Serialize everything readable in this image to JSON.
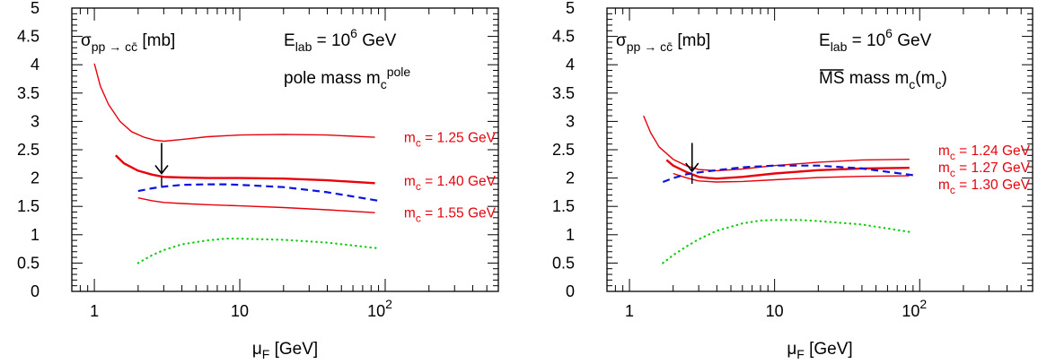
{
  "chart_data": [
    {
      "type": "line",
      "panel": "left",
      "xscale": "log",
      "xlim": [
        0.7,
        600
      ],
      "ylim": [
        0,
        5
      ],
      "ytick_labels": [
        "0",
        "0.5",
        "1",
        "1.5",
        "2",
        "2.5",
        "3",
        "3.5",
        "4",
        "4.5",
        "5"
      ],
      "xtick_labels": [
        {
          "base": "1",
          "sup": ""
        },
        {
          "base": "10",
          "sup": ""
        },
        {
          "base": "10",
          "sup": "2"
        }
      ],
      "xlabel": {
        "sym": "μ",
        "sub": "F",
        "rest": " [GeV]"
      },
      "ylabel": {
        "sym": "σ",
        "sub": "pp → cc̄",
        "rest": " [mb]"
      },
      "annotations": {
        "elab": {
          "base": "E",
          "sub": "lab",
          "mid": " = 10",
          "sup": "6",
          "rest": " GeV"
        },
        "scheme": {
          "base": "pole mass m",
          "sub": "c",
          "sup": "pole",
          "rest": ""
        }
      },
      "arrow": {
        "x": 2.9,
        "y_from": 2.62,
        "y_to": 2.08
      },
      "series": [
        {
          "label": {
            "pre": "m",
            "sub": "c",
            "post": " = 1.25 GeV"
          },
          "label_at_y": 2.73,
          "color": "#e8000b",
          "style": "solid",
          "width": 1.4,
          "x": [
            1.0,
            1.1,
            1.25,
            1.5,
            1.8,
            2.2,
            2.6,
            3.0,
            4,
            6,
            10,
            20,
            40,
            85
          ],
          "y": [
            4.02,
            3.62,
            3.3,
            3.0,
            2.82,
            2.72,
            2.67,
            2.65,
            2.68,
            2.73,
            2.76,
            2.77,
            2.76,
            2.72
          ]
        },
        {
          "label": {
            "pre": "m",
            "sub": "c",
            "post": " = 1.40 GeV"
          },
          "label_at_y": 1.96,
          "color": "#e8000b",
          "style": "solid",
          "width": 2.4,
          "x": [
            1.4,
            1.6,
            2.0,
            2.5,
            3.0,
            4,
            6,
            10,
            20,
            40,
            85
          ],
          "y": [
            2.4,
            2.26,
            2.13,
            2.06,
            2.02,
            2.01,
            2.0,
            2.0,
            1.99,
            1.96,
            1.91
          ]
        },
        {
          "label": {
            "pre": "m",
            "sub": "c",
            "post": " = 1.55 GeV"
          },
          "label_at_y": 1.4,
          "color": "#e8000b",
          "style": "solid",
          "width": 1.4,
          "x": [
            2.0,
            2.5,
            3.0,
            4,
            6,
            10,
            20,
            40,
            85
          ],
          "y": [
            1.65,
            1.6,
            1.57,
            1.55,
            1.53,
            1.51,
            1.48,
            1.44,
            1.39
          ]
        },
        {
          "label": null,
          "color": "#0a14e0",
          "style": "dashed",
          "width": 2.2,
          "x": [
            2.0,
            2.5,
            3.0,
            4,
            6,
            8,
            10,
            20,
            40,
            90
          ],
          "y": [
            1.77,
            1.82,
            1.85,
            1.88,
            1.89,
            1.89,
            1.88,
            1.84,
            1.75,
            1.6
          ]
        },
        {
          "label": null,
          "color": "#11cc11",
          "style": "dotted",
          "width": 2.2,
          "x": [
            2.0,
            2.5,
            3.0,
            4,
            6,
            8,
            10,
            20,
            40,
            90
          ],
          "y": [
            0.5,
            0.64,
            0.73,
            0.83,
            0.9,
            0.93,
            0.93,
            0.91,
            0.86,
            0.76
          ]
        }
      ]
    },
    {
      "type": "line",
      "panel": "right",
      "xscale": "log",
      "xlim": [
        0.7,
        600
      ],
      "ylim": [
        0,
        5
      ],
      "ytick_labels": [
        "0",
        "0.5",
        "1",
        "1.5",
        "2",
        "2.5",
        "3",
        "3.5",
        "4",
        "4.5",
        "5"
      ],
      "xtick_labels": [
        {
          "base": "1",
          "sup": ""
        },
        {
          "base": "10",
          "sup": ""
        },
        {
          "base": "10",
          "sup": "2"
        }
      ],
      "xlabel": {
        "sym": "μ",
        "sub": "F",
        "rest": " [GeV]"
      },
      "ylabel": {
        "sym": "σ",
        "sub": "pp → cc̄",
        "rest": " [mb]"
      },
      "annotations": {
        "elab": {
          "base": "E",
          "sub": "lab",
          "mid": " = 10",
          "sup": "6",
          "rest": " GeV"
        },
        "scheme": {
          "overline": "MS",
          "base": " mass m",
          "sub": "c",
          "rest": "(m",
          "sub2": "c",
          "end": ")"
        }
      },
      "arrow": {
        "x": 2.7,
        "y_from": 2.62,
        "y_to": 2.12
      },
      "series": [
        {
          "label": {
            "pre": "m",
            "sub": "c",
            "post": " = 1.24 GeV"
          },
          "label_at_y": 2.5,
          "color": "#e8000b",
          "style": "solid",
          "width": 1.4,
          "x": [
            1.25,
            1.4,
            1.6,
            2.0,
            2.5,
            3.0,
            4,
            6,
            10,
            20,
            40,
            85
          ],
          "y": [
            3.1,
            2.8,
            2.55,
            2.33,
            2.21,
            2.15,
            2.13,
            2.16,
            2.22,
            2.28,
            2.32,
            2.33
          ]
        },
        {
          "label": {
            "pre": "m",
            "sub": "c",
            "post": " = 1.27 GeV"
          },
          "label_at_y": 2.2,
          "color": "#e8000b",
          "style": "solid",
          "width": 2.4,
          "x": [
            1.8,
            2.0,
            2.5,
            3.0,
            3.5,
            4,
            6,
            10,
            20,
            40,
            85
          ],
          "y": [
            2.32,
            2.22,
            2.1,
            2.02,
            2.0,
            1.99,
            2.02,
            2.08,
            2.14,
            2.17,
            2.18
          ]
        },
        {
          "label": {
            "pre": "m",
            "sub": "c",
            "post": " = 1.30 GeV"
          },
          "label_at_y": 1.9,
          "color": "#e8000b",
          "style": "solid",
          "width": 1.4,
          "x": [
            2.0,
            2.5,
            3.0,
            4,
            6,
            10,
            20,
            40,
            85
          ],
          "y": [
            2.08,
            2.0,
            1.95,
            1.93,
            1.94,
            1.97,
            2.01,
            2.03,
            2.04
          ]
        },
        {
          "label": null,
          "color": "#0a14e0",
          "style": "dashed",
          "width": 2.2,
          "x": [
            1.7,
            2.0,
            2.5,
            3.0,
            4,
            6,
            10,
            20,
            40,
            90
          ],
          "y": [
            1.93,
            2.0,
            2.07,
            2.1,
            2.14,
            2.19,
            2.22,
            2.22,
            2.17,
            2.05
          ]
        },
        {
          "label": null,
          "color": "#11cc11",
          "style": "dotted",
          "width": 2.2,
          "x": [
            1.7,
            2.0,
            2.5,
            3.0,
            4,
            6,
            8,
            10,
            15,
            20,
            40,
            90
          ],
          "y": [
            0.5,
            0.64,
            0.8,
            0.92,
            1.07,
            1.2,
            1.25,
            1.26,
            1.26,
            1.24,
            1.18,
            1.04
          ]
        }
      ]
    }
  ]
}
